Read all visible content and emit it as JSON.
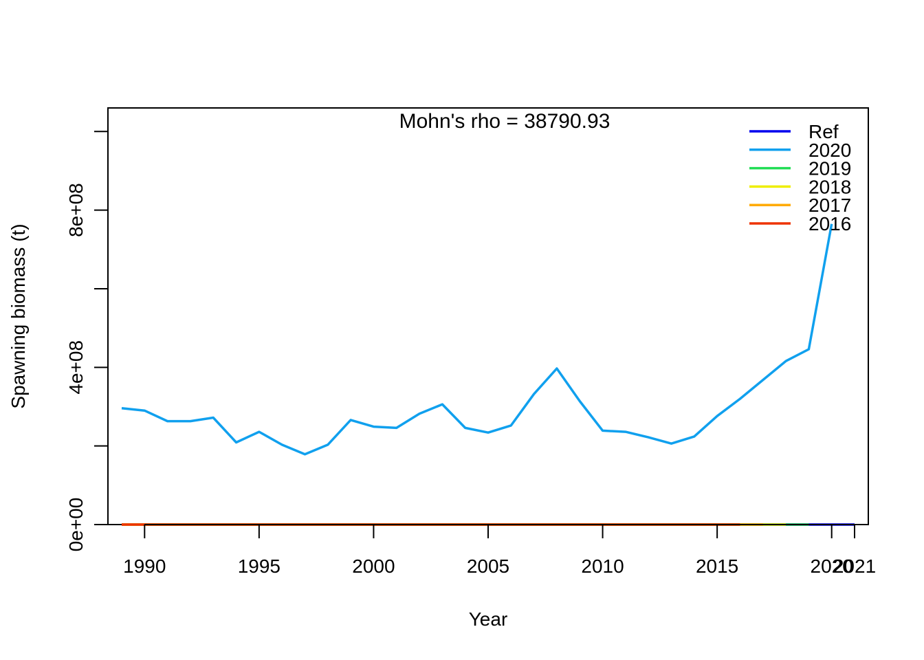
{
  "chart_data": {
    "type": "line",
    "title": "",
    "annotation": "Mohn's rho = 38790.93",
    "xlabel": "Year",
    "ylabel": "Spawning biomass (t)",
    "xlim": [
      1988.4,
      2021.6
    ],
    "ylim": [
      0,
      1060000000.0
    ],
    "x_ticks": [
      1990,
      1995,
      2000,
      2005,
      2010,
      2015,
      2020,
      2021
    ],
    "x_tick_labels": [
      "1990",
      "1995",
      "2000",
      "2005",
      "2010",
      "2015",
      "2020",
      "2021"
    ],
    "y_ticks": [
      0,
      200000000,
      400000000,
      600000000,
      800000000,
      1000000000
    ],
    "y_tick_labels": [
      "0e+00",
      "",
      "4e+08",
      "",
      "8e+08",
      ""
    ],
    "grid": false,
    "legend_position": "top-right",
    "series": [
      {
        "name": "Ref",
        "color": "#0000ee",
        "x": [
          1989,
          1990,
          1991,
          1992,
          1993,
          1994,
          1995,
          1996,
          1997,
          1998,
          1999,
          2000,
          2001,
          2002,
          2003,
          2004,
          2005,
          2006,
          2007,
          2008,
          2009,
          2010,
          2011,
          2012,
          2013,
          2014,
          2015,
          2016,
          2017,
          2018,
          2019,
          2020,
          2021
        ],
        "values": [
          0,
          0,
          0,
          0,
          0,
          0,
          0,
          0,
          0,
          0,
          0,
          0,
          0,
          0,
          0,
          0,
          0,
          0,
          0,
          0,
          0,
          0,
          0,
          0,
          0,
          0,
          0,
          0,
          0,
          0,
          0,
          0,
          0
        ]
      },
      {
        "name": "2020",
        "color": "#10a0ee",
        "x": [
          1989,
          1990,
          1991,
          1992,
          1993,
          1994,
          1995,
          1996,
          1997,
          1998,
          1999,
          2000,
          2001,
          2002,
          2003,
          2004,
          2005,
          2006,
          2007,
          2008,
          2009,
          2010,
          2011,
          2012,
          2013,
          2014,
          2015,
          2016,
          2017,
          2018,
          2019,
          2020
        ],
        "values": [
          296000000,
          290000000,
          263000000,
          263000000,
          272000000,
          209000000,
          236000000,
          203000000,
          179000000,
          203000000,
          266000000,
          249000000,
          246000000,
          282000000,
          306000000,
          246000000,
          234000000,
          252000000,
          332000000,
          397000000,
          314000000,
          239000000,
          236000000,
          222000000,
          206000000,
          224000000,
          276000000,
          320000000,
          368000000,
          416000000,
          446000000,
          765000000
        ]
      },
      {
        "name": "2019",
        "color": "#22dd55",
        "x": [
          1989,
          1990,
          1991,
          1992,
          1993,
          1994,
          1995,
          1996,
          1997,
          1998,
          1999,
          2000,
          2001,
          2002,
          2003,
          2004,
          2005,
          2006,
          2007,
          2008,
          2009,
          2010,
          2011,
          2012,
          2013,
          2014,
          2015,
          2016,
          2017,
          2018,
          2019
        ],
        "values": [
          0,
          0,
          0,
          0,
          0,
          0,
          0,
          0,
          0,
          0,
          0,
          0,
          0,
          0,
          0,
          0,
          0,
          0,
          0,
          0,
          0,
          0,
          0,
          0,
          0,
          0,
          0,
          0,
          0,
          0,
          0
        ]
      },
      {
        "name": "2018",
        "color": "#eeee00",
        "x": [
          1989,
          1990,
          1991,
          1992,
          1993,
          1994,
          1995,
          1996,
          1997,
          1998,
          1999,
          2000,
          2001,
          2002,
          2003,
          2004,
          2005,
          2006,
          2007,
          2008,
          2009,
          2010,
          2011,
          2012,
          2013,
          2014,
          2015,
          2016,
          2017,
          2018
        ],
        "values": [
          0,
          0,
          0,
          0,
          0,
          0,
          0,
          0,
          0,
          0,
          0,
          0,
          0,
          0,
          0,
          0,
          0,
          0,
          0,
          0,
          0,
          0,
          0,
          0,
          0,
          0,
          0,
          0,
          0,
          0
        ]
      },
      {
        "name": "2017",
        "color": "#ffaa00",
        "x": [
          1989,
          1990,
          1991,
          1992,
          1993,
          1994,
          1995,
          1996,
          1997,
          1998,
          1999,
          2000,
          2001,
          2002,
          2003,
          2004,
          2005,
          2006,
          2007,
          2008,
          2009,
          2010,
          2011,
          2012,
          2013,
          2014,
          2015,
          2016,
          2017
        ],
        "values": [
          0,
          0,
          0,
          0,
          0,
          0,
          0,
          0,
          0,
          0,
          0,
          0,
          0,
          0,
          0,
          0,
          0,
          0,
          0,
          0,
          0,
          0,
          0,
          0,
          0,
          0,
          0,
          0,
          0
        ]
      },
      {
        "name": "2016",
        "color": "#ee3300",
        "x": [
          1989,
          1990,
          1991,
          1992,
          1993,
          1994,
          1995,
          1996,
          1997,
          1998,
          1999,
          2000,
          2001,
          2002,
          2003,
          2004,
          2005,
          2006,
          2007,
          2008,
          2009,
          2010,
          2011,
          2012,
          2013,
          2014,
          2015,
          2016
        ],
        "values": [
          0,
          0,
          0,
          0,
          0,
          0,
          0,
          0,
          0,
          0,
          0,
          0,
          0,
          0,
          0,
          0,
          0,
          0,
          0,
          0,
          0,
          0,
          0,
          0,
          0,
          0,
          0,
          0
        ]
      }
    ]
  }
}
